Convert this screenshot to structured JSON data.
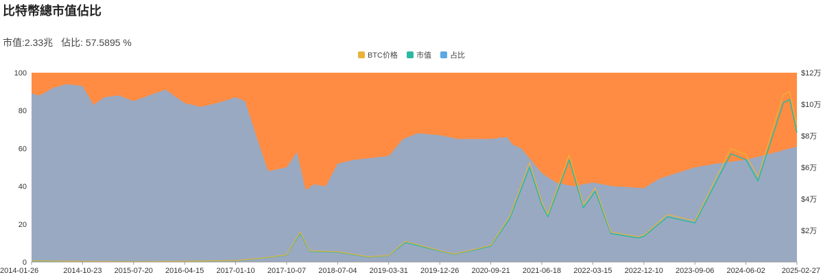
{
  "header": {
    "title": "比特幣總市值佔比",
    "market_cap_label": "市值:",
    "market_cap_value": "2.33兆",
    "share_label": "佔比:",
    "share_value": "57.5895 %"
  },
  "colors": {
    "share_fill": "#9aa9c2",
    "remainder_fill": "#ff8c42",
    "btc_price": "#e8b33a",
    "market_cap": "#2fb8a1",
    "share_legend": "#5aa8e6"
  },
  "chart_data": {
    "type": "area",
    "title": "比特幣總市值佔比",
    "legend": [
      "BTC价格",
      "市值",
      "占比"
    ],
    "legend_position": "top-center",
    "x_tick_labels": [
      "2014-01-26",
      "2014-10-23",
      "2015-07-20",
      "2016-04-15",
      "2017-01-10",
      "2017-10-07",
      "2018-07-04",
      "2019-03-31",
      "2019-12-26",
      "2020-09-21",
      "2021-06-18",
      "2022-03-15",
      "2022-12-10",
      "2023-09-06",
      "2024-06-02",
      "2025-02-27"
    ],
    "y_left": {
      "ticks": [
        0,
        20,
        40,
        60,
        80,
        100
      ],
      "range": [
        0,
        100
      ]
    },
    "y_right": {
      "tick_labels": [
        "$2万",
        "$4万",
        "$6万",
        "$8万",
        "$10万",
        "$12万"
      ],
      "ticks": [
        20000,
        40000,
        60000,
        80000,
        100000,
        120000
      ],
      "range": [
        0,
        120000
      ]
    },
    "series": [
      {
        "name": "占比",
        "x": [
          "2014-01-26",
          "2014-03-10",
          "2014-05-20",
          "2014-08-01",
          "2014-10-23",
          "2014-12-20",
          "2015-02-15",
          "2015-05-01",
          "2015-07-20",
          "2015-10-10",
          "2016-01-05",
          "2016-04-15",
          "2016-07-10",
          "2016-10-05",
          "2017-01-10",
          "2017-03-01",
          "2017-05-01",
          "2017-07-01",
          "2017-10-07",
          "2017-12-01",
          "2018-01-15",
          "2018-03-01",
          "2018-05-01",
          "2018-07-04",
          "2018-10-01",
          "2019-01-01",
          "2019-03-31",
          "2019-06-15",
          "2019-09-01",
          "2019-12-26",
          "2020-04-01",
          "2020-09-21",
          "2020-12-15",
          "2021-01-15",
          "2021-03-01",
          "2021-06-18",
          "2021-09-01",
          "2021-12-01",
          "2022-03-15",
          "2022-07-01",
          "2022-12-10",
          "2023-03-01",
          "2023-09-06",
          "2024-01-01",
          "2024-06-02",
          "2024-10-01",
          "2025-02-27"
        ],
        "values": [
          89,
          88,
          92,
          94,
          93,
          83,
          87,
          88,
          85,
          88,
          91,
          84,
          82,
          84,
          87,
          85,
          66,
          48,
          50,
          58,
          38,
          41,
          40,
          52,
          54,
          55,
          56,
          65,
          68,
          67,
          65,
          65,
          66,
          62,
          60,
          47,
          42,
          40,
          42,
          40,
          39,
          44,
          50,
          52,
          54,
          57,
          61
        ]
      },
      {
        "name": "BTC价格",
        "x": [
          "2014-01-26",
          "2014-10-23",
          "2015-07-20",
          "2016-04-15",
          "2017-01-10",
          "2017-06-01",
          "2017-10-07",
          "2017-12-17",
          "2018-02-06",
          "2018-07-04",
          "2018-12-15",
          "2019-03-31",
          "2019-06-26",
          "2019-12-26",
          "2020-03-12",
          "2020-09-21",
          "2020-12-31",
          "2021-04-14",
          "2021-06-18",
          "2021-07-20",
          "2021-11-10",
          "2022-01-24",
          "2022-03-28",
          "2022-06-18",
          "2022-11-09",
          "2022-12-10",
          "2023-04-14",
          "2023-09-06",
          "2024-03-14",
          "2024-06-02",
          "2024-08-05",
          "2024-12-17",
          "2025-01-20",
          "2025-02-27"
        ],
        "values": [
          800,
          380,
          280,
          420,
          900,
          2500,
          4500,
          19000,
          7000,
          6500,
          3300,
          4100,
          13000,
          7200,
          5000,
          10500,
          29000,
          63000,
          38000,
          30000,
          68000,
          36000,
          47000,
          19000,
          16000,
          17000,
          30000,
          26000,
          72000,
          68000,
          54000,
          106000,
          108000,
          86000
        ]
      },
      {
        "name": "市值",
        "x": [
          "2014-01-26",
          "2014-10-23",
          "2015-07-20",
          "2016-04-15",
          "2017-01-10",
          "2017-06-01",
          "2017-10-07",
          "2017-12-17",
          "2018-02-06",
          "2018-07-04",
          "2018-12-15",
          "2019-03-31",
          "2019-06-26",
          "2019-12-26",
          "2020-03-12",
          "2020-09-21",
          "2020-12-31",
          "2021-04-14",
          "2021-06-18",
          "2021-07-20",
          "2021-11-10",
          "2022-01-24",
          "2022-03-28",
          "2022-06-18",
          "2022-11-09",
          "2022-12-10",
          "2023-04-14",
          "2023-09-06",
          "2024-03-14",
          "2024-06-02",
          "2024-08-05",
          "2024-12-17",
          "2025-01-20",
          "2025-02-27"
        ],
        "values": [
          760,
          360,
          265,
          400,
          860,
          2400,
          4300,
          18200,
          6700,
          6200,
          3150,
          3900,
          12400,
          6900,
          4800,
          10000,
          27600,
          60000,
          36200,
          28600,
          64800,
          34300,
          44800,
          18100,
          15200,
          16200,
          28600,
          24800,
          68600,
          64800,
          51400,
          101000,
          103000,
          82000
        ]
      }
    ]
  }
}
